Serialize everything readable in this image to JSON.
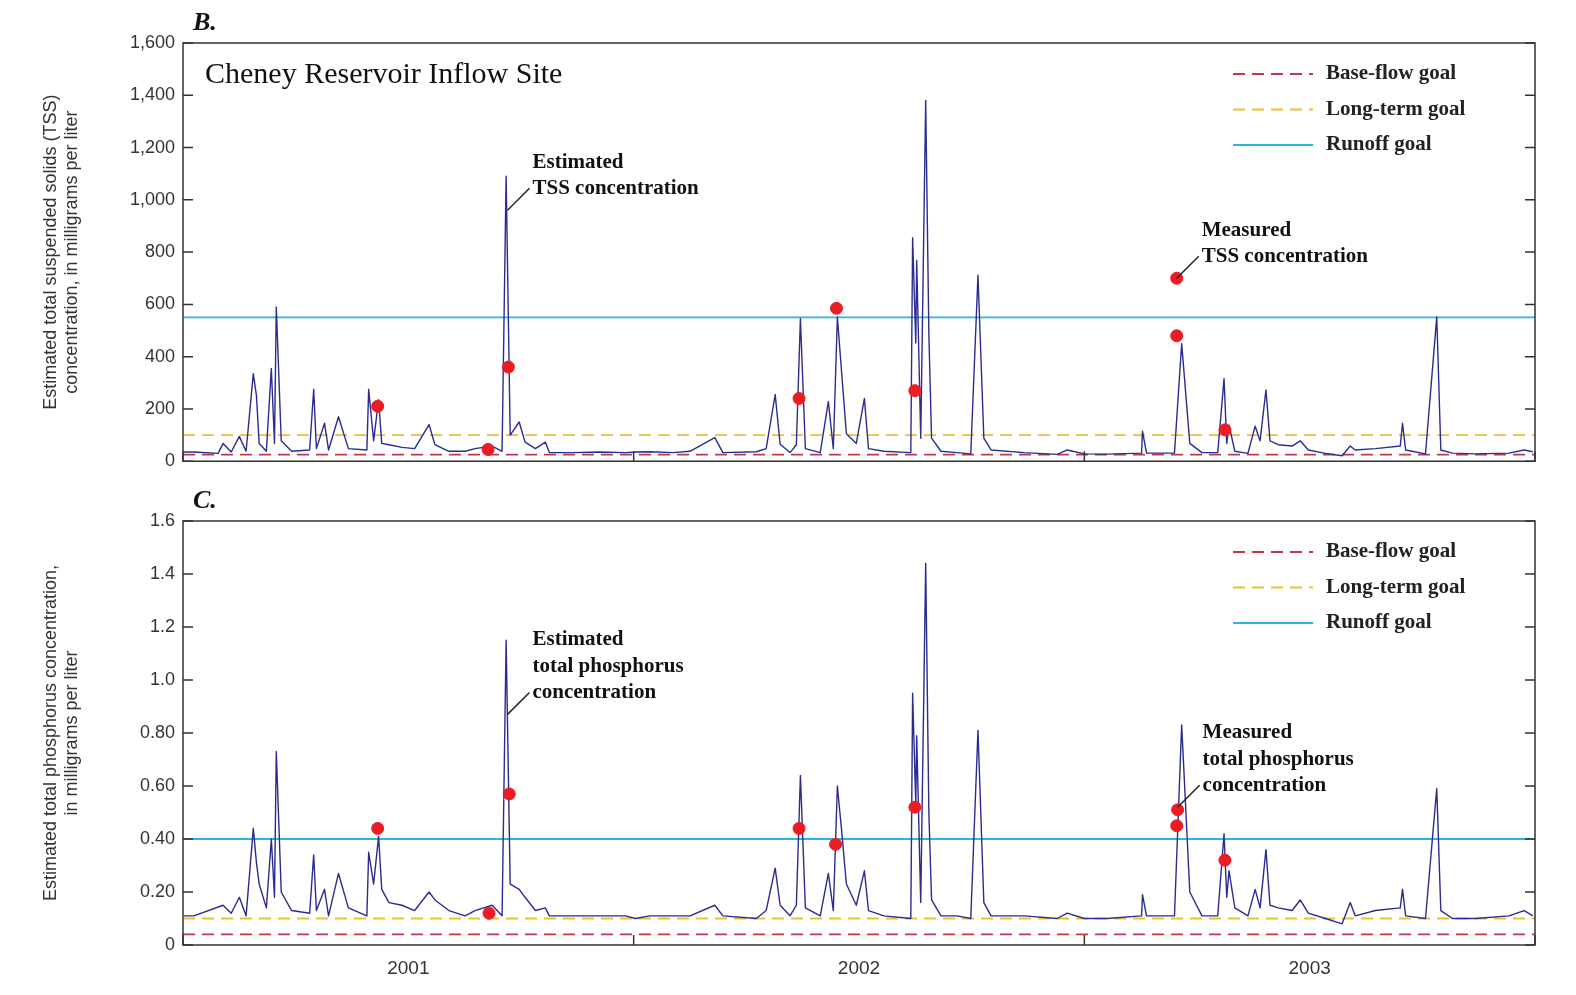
{
  "chart_data": [
    {
      "type": "line",
      "ylabel": "Estimated total suspended solids (TSS)\nconcentration, in milligrams per liter",
      "xlim": [
        2001,
        2004
      ],
      "xticks": [
        {
          "value": 2001,
          "label": null
        },
        {
          "value": 2002,
          "label": null
        },
        {
          "value": 2003,
          "label": null
        },
        {
          "value": 2004,
          "label": null
        }
      ],
      "ylim": [
        0,
        1600
      ],
      "yticks": [
        0,
        200,
        400,
        600,
        800,
        {
          "value": 1000,
          "label": "1,000"
        },
        {
          "value": 1200,
          "label": "1,200"
        },
        {
          "value": 1400,
          "label": "1,400"
        },
        {
          "value": 1600,
          "label": "1,600"
        }
      ],
      "tick_labels": "y",
      "legend": "top right",
      "series": [
        {
          "color": "#2b2c8f",
          "x": [
            2001.002,
            2001.024,
            2001.078,
            2001.089,
            2001.107,
            2001.125,
            2001.14,
            2001.156,
            2001.163,
            2001.169,
            2001.185,
            2001.196,
            2001.203,
            2001.207,
            2001.218,
            2001.241,
            2001.281,
            2001.29,
            2001.296,
            2001.314,
            2001.323,
            2001.345,
            2001.367,
            2001.408,
            2001.412,
            2001.423,
            2001.434,
            2001.441,
            2001.457,
            2001.486,
            2001.514,
            2001.546,
            2001.559,
            2001.59,
            2001.626,
            2001.648,
            2001.686,
            2001.708,
            2001.717,
            2001.726,
            2001.746,
            2001.759,
            2001.782,
            2001.804,
            2001.813,
            2001.864,
            2001.924,
            2001.982,
            2002.004,
            2002.036,
            2002.087,
            2002.125,
            2002.18,
            2002.198,
            2002.272,
            2002.294,
            2002.314,
            2002.325,
            2002.347,
            2002.361,
            2002.37,
            2002.381,
            2002.414,
            2002.432,
            2002.443,
            2002.452,
            2002.461,
            2002.472,
            2002.494,
            2002.512,
            2002.521,
            2002.555,
            2002.615,
            2002.619,
            2002.626,
            2002.628,
            2002.637,
            2002.648,
            2002.655,
            2002.661,
            2002.682,
            2002.717,
            2002.748,
            2002.764,
            2002.777,
            2002.793,
            2002.866,
            2002.94,
            2002.962,
            2003.0,
            2003.051,
            2003.127,
            2003.129,
            2003.138,
            2003.2,
            2003.216,
            2003.234,
            2003.261,
            2003.296,
            2003.31,
            2003.316,
            2003.321,
            2003.334,
            2003.363,
            2003.379,
            2003.39,
            2003.403,
            2003.412,
            2003.43,
            2003.461,
            2003.479,
            2003.497,
            2003.535,
            2003.572,
            2003.59,
            2003.601,
            2003.646,
            2003.701,
            2003.706,
            2003.713,
            2003.757,
            2003.782,
            2003.791,
            2003.817,
            2003.869,
            2003.942,
            2003.976,
            2003.995
          ],
          "values": [
            35,
            35,
            30,
            68,
            35,
            95,
            38,
            335,
            250,
            68,
            38,
            355,
            68,
            590,
            78,
            38,
            43,
            275,
            48,
            145,
            43,
            170,
            48,
            43,
            275,
            78,
            235,
            68,
            63,
            53,
            48,
            140,
            63,
            38,
            38,
            48,
            58,
            38,
            1090,
            100,
            150,
            73,
            48,
            73,
            33,
            33,
            35,
            33,
            35,
            36,
            33,
            38,
            90,
            33,
            36,
            48,
            255,
            65,
            33,
            63,
            545,
            48,
            33,
            228,
            48,
            552,
            350,
            105,
            68,
            240,
            48,
            38,
            33,
            855,
            452,
            768,
            88,
            1380,
            488,
            88,
            38,
            33,
            28,
            712,
            88,
            43,
            33,
            26,
            43,
            28,
            27,
            31,
            115,
            31,
            31,
            450,
            68,
            33,
            33,
            316,
            68,
            138,
            38,
            30,
            134,
            78,
            273,
            78,
            63,
            58,
            78,
            43,
            30,
            21,
            58,
            43,
            48,
            58,
            145,
            43,
            28,
            552,
            43,
            31,
            28,
            31,
            43,
            36
          ]
        },
        {
          "type": "scatter",
          "color": "#ec1c24",
          "marker": "circle",
          "x": [
            2001.432,
            2001.677,
            2001.722,
            2002.367,
            2002.45,
            2002.624,
            2003.205,
            2003.205,
            2003.312
          ],
          "values": [
            210,
            45,
            360,
            240,
            585,
            270,
            700,
            480,
            120
          ]
        }
      ],
      "ref_lines": [
        {
          "axis": "y",
          "value": 25,
          "label": "Base-flow goal",
          "color": "#c0394a",
          "line_style": "dashed"
        },
        {
          "axis": "y",
          "value": 100,
          "label": "Long-term goal",
          "color": "#f0bf2a",
          "line_style": "dashed"
        },
        {
          "axis": "y",
          "value": 550,
          "label": "Runoff goal",
          "color": "#2bb5e0",
          "line_style": "solid"
        }
      ],
      "annotations": [
        "B.",
        "Cheney Reservoir Inflow Site",
        {
          "text": "Estimated\nTSS concentration",
          "x": 2001.72,
          "y": 960
        },
        {
          "text": "Measured\nTSS concentration",
          "x": 2003.205,
          "y": 700
        }
      ]
    },
    {
      "type": "line",
      "ylabel": "Estimated total phosphorus concentration,\nin milligrams per liter",
      "xlim": [
        2001,
        2004
      ],
      "xticks": [
        {
          "value": 2001,
          "label": null
        },
        {
          "value": 2001.5,
          "label": "2001"
        },
        {
          "value": 2002,
          "label": null
        },
        {
          "value": 2002.5,
          "label": "2002"
        },
        {
          "value": 2003,
          "label": null
        },
        {
          "value": 2003.5,
          "label": "2003"
        },
        {
          "value": 2004,
          "label": null
        }
      ],
      "ylim": [
        0,
        1.6
      ],
      "yticks": [
        0,
        {
          "value": 0.2,
          "label": "0.20"
        },
        {
          "value": 0.4,
          "label": "0.40"
        },
        {
          "value": 0.6,
          "label": "0.60"
        },
        {
          "value": 0.8,
          "label": "0.80"
        },
        {
          "value": 1.0,
          "label": "1.0"
        },
        1.2,
        1.4,
        1.6
      ],
      "legend": "top right",
      "series": [
        {
          "color": "#2b2c8f",
          "x": [
            2001.002,
            2001.024,
            2001.089,
            2001.107,
            2001.125,
            2001.14,
            2001.156,
            2001.163,
            2001.169,
            2001.185,
            2001.196,
            2001.203,
            2001.207,
            2001.218,
            2001.241,
            2001.281,
            2001.29,
            2001.296,
            2001.314,
            2001.323,
            2001.345,
            2001.367,
            2001.408,
            2001.412,
            2001.423,
            2001.434,
            2001.441,
            2001.457,
            2001.486,
            2001.514,
            2001.546,
            2001.559,
            2001.59,
            2001.626,
            2001.648,
            2001.686,
            2001.708,
            2001.717,
            2001.726,
            2001.746,
            2001.759,
            2001.782,
            2001.804,
            2001.813,
            2001.864,
            2001.924,
            2001.982,
            2002.004,
            2002.036,
            2002.087,
            2002.125,
            2002.18,
            2002.198,
            2002.272,
            2002.294,
            2002.314,
            2002.325,
            2002.347,
            2002.361,
            2002.37,
            2002.381,
            2002.414,
            2002.432,
            2002.443,
            2002.452,
            2002.461,
            2002.472,
            2002.494,
            2002.512,
            2002.521,
            2002.555,
            2002.615,
            2002.619,
            2002.626,
            2002.628,
            2002.637,
            2002.648,
            2002.655,
            2002.661,
            2002.682,
            2002.717,
            2002.748,
            2002.764,
            2002.777,
            2002.793,
            2002.866,
            2002.94,
            2002.962,
            2003.0,
            2003.051,
            2003.127,
            2003.129,
            2003.138,
            2003.2,
            2003.216,
            2003.234,
            2003.261,
            2003.296,
            2003.31,
            2003.316,
            2003.321,
            2003.334,
            2003.363,
            2003.379,
            2003.39,
            2003.403,
            2003.412,
            2003.43,
            2003.461,
            2003.479,
            2003.497,
            2003.535,
            2003.572,
            2003.59,
            2003.601,
            2003.646,
            2003.701,
            2003.706,
            2003.713,
            2003.757,
            2003.782,
            2003.791,
            2003.817,
            2003.869,
            2003.942,
            2003.976,
            2003.995
          ],
          "values": [
            0.11,
            0.11,
            0.15,
            0.12,
            0.18,
            0.11,
            0.44,
            0.31,
            0.23,
            0.14,
            0.4,
            0.18,
            0.73,
            0.2,
            0.13,
            0.12,
            0.34,
            0.13,
            0.21,
            0.11,
            0.27,
            0.14,
            0.11,
            0.35,
            0.23,
            0.41,
            0.21,
            0.16,
            0.15,
            0.13,
            0.2,
            0.17,
            0.13,
            0.11,
            0.13,
            0.15,
            0.11,
            1.15,
            0.23,
            0.21,
            0.18,
            0.13,
            0.14,
            0.11,
            0.11,
            0.11,
            0.11,
            0.1,
            0.11,
            0.11,
            0.11,
            0.15,
            0.11,
            0.1,
            0.13,
            0.29,
            0.15,
            0.11,
            0.15,
            0.64,
            0.14,
            0.11,
            0.27,
            0.13,
            0.6,
            0.44,
            0.23,
            0.15,
            0.28,
            0.13,
            0.11,
            0.1,
            0.95,
            0.53,
            0.79,
            0.16,
            1.44,
            0.5,
            0.17,
            0.11,
            0.11,
            0.1,
            0.81,
            0.16,
            0.11,
            0.11,
            0.1,
            0.12,
            0.1,
            0.1,
            0.11,
            0.19,
            0.11,
            0.11,
            0.83,
            0.2,
            0.11,
            0.11,
            0.42,
            0.18,
            0.28,
            0.14,
            0.11,
            0.21,
            0.14,
            0.36,
            0.15,
            0.14,
            0.13,
            0.17,
            0.12,
            0.1,
            0.08,
            0.16,
            0.11,
            0.13,
            0.14,
            0.21,
            0.11,
            0.1,
            0.59,
            0.13,
            0.1,
            0.1,
            0.11,
            0.13,
            0.11
          ]
        },
        {
          "type": "scatter",
          "color": "#ec1c24",
          "marker": "circle",
          "x": [
            2001.432,
            2001.679,
            2001.724,
            2002.367,
            2002.448,
            2002.624,
            2003.207,
            2003.205,
            2003.312
          ],
          "values": [
            0.44,
            0.12,
            0.57,
            0.44,
            0.38,
            0.52,
            0.51,
            0.45,
            0.32
          ]
        }
      ],
      "ref_lines": [
        {
          "axis": "y",
          "value": 0.04,
          "label": "Base-flow goal",
          "color": "#c0394a",
          "line_style": "dashed"
        },
        {
          "axis": "y",
          "value": 0.1,
          "label": "Long-term goal",
          "color": "#f0bf2a",
          "line_style": "dashed"
        },
        {
          "axis": "y",
          "value": 0.4,
          "label": "Runoff goal",
          "color": "#2bb5e0",
          "line_style": "solid"
        }
      ],
      "annotations": [
        "C.",
        {
          "text": "Estimated\ntotal phosphorus\nconcentration",
          "x": 2001.72,
          "y": 0.87
        },
        {
          "text": "Measured\ntotal phosphorus\nconcentration",
          "x": 2003.207,
          "y": 0.52
        }
      ]
    }
  ]
}
